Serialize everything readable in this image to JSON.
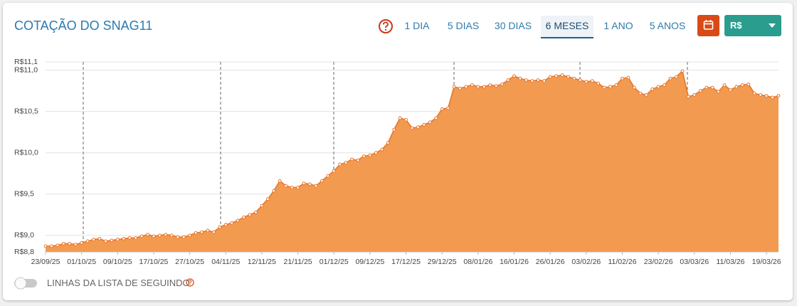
{
  "header": {
    "title": "COTAÇÃO DO SNAG11",
    "periods": [
      "1 DIA",
      "5 DIAS",
      "30 DIAS",
      "6 MESES",
      "1 ANO",
      "5 ANOS"
    ],
    "currency": "R$"
  },
  "footer": {
    "toggle_label": "LINHAS DA LISTA DE SEGUINDO"
  },
  "chart_data": {
    "type": "area",
    "color": "#e8762b",
    "fill": "#f29a4f",
    "grid": true,
    "ylim": [
      8.8,
      11.1
    ],
    "yticks": [
      {
        "value": 8.8,
        "label": "R$8,8"
      },
      {
        "value": 9.0,
        "label": "R$9,0"
      },
      {
        "value": 9.5,
        "label": "R$9,5"
      },
      {
        "value": 10.0,
        "label": "R$10,0"
      },
      {
        "value": 10.5,
        "label": "R$10,5"
      },
      {
        "value": 11.0,
        "label": "R$11,0"
      },
      {
        "value": 11.1,
        "label": "R$11,1"
      }
    ],
    "categories": [
      "23/09/25",
      null,
      null,
      null,
      null,
      null,
      "01/10/25",
      null,
      null,
      null,
      null,
      null,
      "09/10/25",
      null,
      null,
      null,
      null,
      null,
      "17/10/25",
      null,
      null,
      null,
      null,
      null,
      "27/10/25",
      null,
      null,
      null,
      null,
      null,
      "04/11/25",
      null,
      null,
      null,
      null,
      null,
      "12/11/25",
      null,
      null,
      null,
      null,
      null,
      "21/11/25",
      null,
      null,
      null,
      null,
      null,
      "01/12/25",
      null,
      null,
      null,
      null,
      null,
      "09/12/25",
      null,
      null,
      null,
      null,
      null,
      "17/12/25",
      null,
      null,
      null,
      null,
      null,
      "29/12/25",
      null,
      null,
      null,
      null,
      null,
      "08/01/26",
      null,
      null,
      null,
      null,
      null,
      "16/01/26",
      null,
      null,
      null,
      null,
      null,
      "26/01/26",
      null,
      null,
      null,
      null,
      null,
      "03/02/26",
      null,
      null,
      null,
      null,
      null,
      "11/02/26",
      null,
      null,
      null,
      null,
      null,
      "23/02/26",
      null,
      null,
      null,
      null,
      null,
      "03/03/26",
      null,
      null,
      null,
      null,
      null,
      "11/03/26",
      null,
      null,
      null,
      null,
      null,
      "19/03/26",
      null,
      null
    ],
    "values": [
      8.87,
      8.87,
      8.88,
      8.9,
      8.9,
      8.89,
      8.91,
      8.93,
      8.95,
      8.96,
      8.93,
      8.94,
      8.95,
      8.96,
      8.97,
      8.97,
      8.99,
      9.01,
      8.99,
      9.0,
      9.01,
      9.0,
      8.98,
      8.98,
      9.0,
      9.03,
      9.04,
      9.06,
      9.04,
      9.1,
      9.13,
      9.15,
      9.18,
      9.22,
      9.25,
      9.28,
      9.36,
      9.44,
      9.54,
      9.66,
      9.6,
      9.58,
      9.58,
      9.63,
      9.62,
      9.6,
      9.66,
      9.72,
      9.78,
      9.86,
      9.88,
      9.92,
      9.91,
      9.96,
      9.97,
      10.0,
      10.04,
      10.12,
      10.28,
      10.42,
      10.4,
      10.3,
      10.31,
      10.34,
      10.37,
      10.42,
      10.53,
      10.54,
      10.8,
      10.78,
      10.8,
      10.82,
      10.8,
      10.8,
      10.82,
      10.81,
      10.83,
      10.88,
      10.93,
      10.9,
      10.88,
      10.87,
      10.88,
      10.87,
      10.92,
      10.93,
      10.94,
      10.92,
      10.9,
      10.88,
      10.86,
      10.87,
      10.84,
      10.79,
      10.8,
      10.82,
      10.9,
      10.91,
      10.79,
      10.72,
      10.7,
      10.77,
      10.8,
      10.82,
      10.9,
      10.92,
      10.99,
      10.68,
      10.7,
      10.75,
      10.79,
      10.79,
      10.74,
      10.82,
      10.76,
      10.8,
      10.82,
      10.83,
      10.72,
      10.7,
      10.69,
      10.67,
      10.69
    ]
  }
}
